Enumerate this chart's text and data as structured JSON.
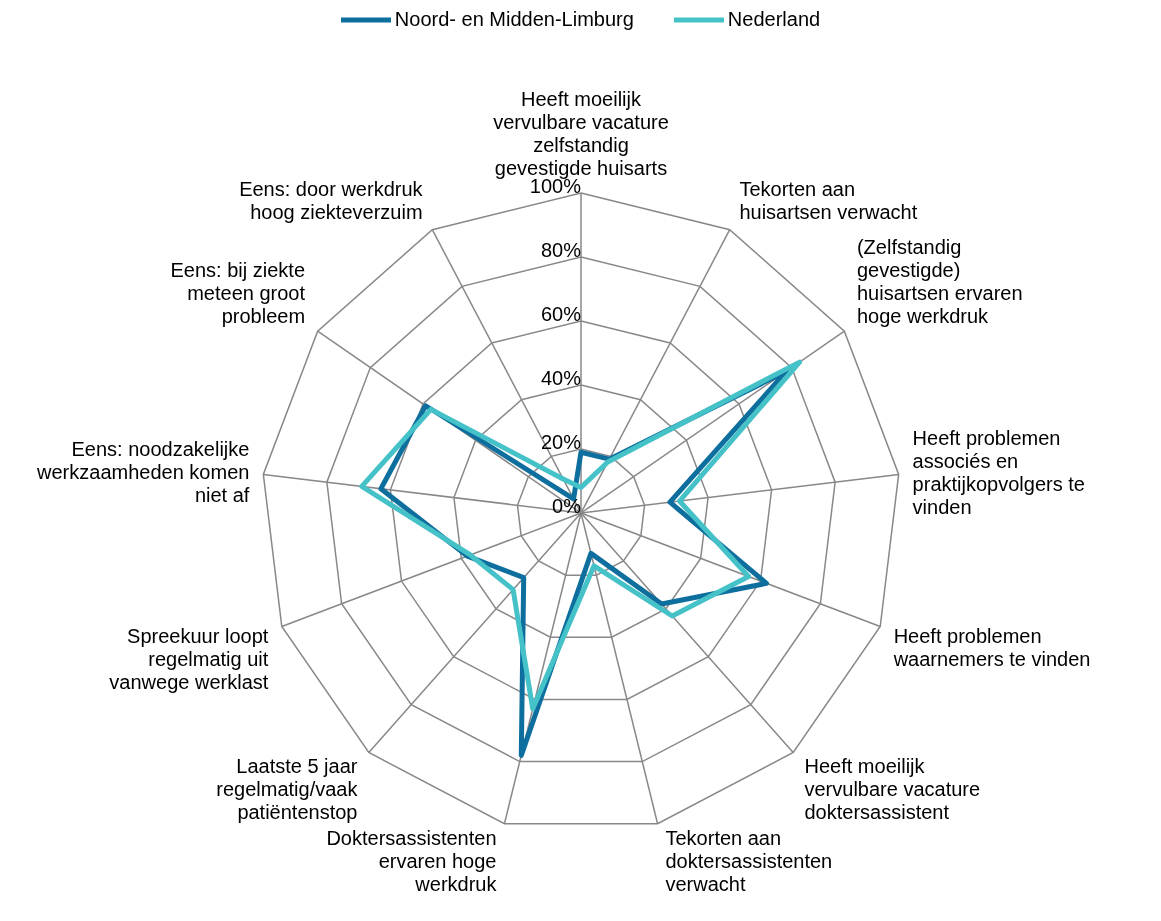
{
  "chart_data": {
    "type": "radar",
    "categories": [
      "Heeft moeilijk vervulbare vacature zelfstandig gevestigde huisarts",
      "Tekorten aan huisartsen verwacht",
      "(Zelfstandig gevestigde) huisartsen ervaren hoge werkdruk",
      "Heeft problemen associés en praktijkopvolgers te vinden",
      "Heeft problemen waarnemers te vinden",
      "Heeft moeilijk vervulbare vacature doktersassistent",
      "Tekorten aan doktersassistenten verwacht",
      "Doktersassistenten ervaren hoge werkdruk",
      "Laatste 5 jaar regelmatig/vaak patiëntenstop",
      "Spreekuur loopt regelmatig uit vanwege werklast",
      "Eens: noodzakelijke werkzaamheden komen niet af",
      "Eens: bij ziekte meteen groot probleem",
      "Eens: door werkdruk hoog ziekteverzuim"
    ],
    "series": [
      {
        "name": "Noord- en Midden-Limburg",
        "color": "#0e6f9e",
        "values": [
          19,
          19,
          78,
          28,
          62,
          38,
          13,
          78,
          27,
          38,
          63,
          59,
          5
        ]
      },
      {
        "name": "Nederland",
        "color": "#45c1c8",
        "values": [
          8,
          18,
          83,
          31,
          56,
          43,
          17,
          63,
          32,
          37,
          69,
          57,
          12
        ]
      }
    ],
    "ylim": [
      0,
      100
    ],
    "yticks": [
      {
        "value": 0,
        "label": "0%"
      },
      {
        "value": 20,
        "label": "20%"
      },
      {
        "value": 40,
        "label": "40%"
      },
      {
        "value": 60,
        "label": "60%"
      },
      {
        "value": 80,
        "label": "80%"
      },
      {
        "value": 100,
        "label": "100%"
      }
    ],
    "grid": true,
    "legend": "top",
    "marker": "none"
  }
}
